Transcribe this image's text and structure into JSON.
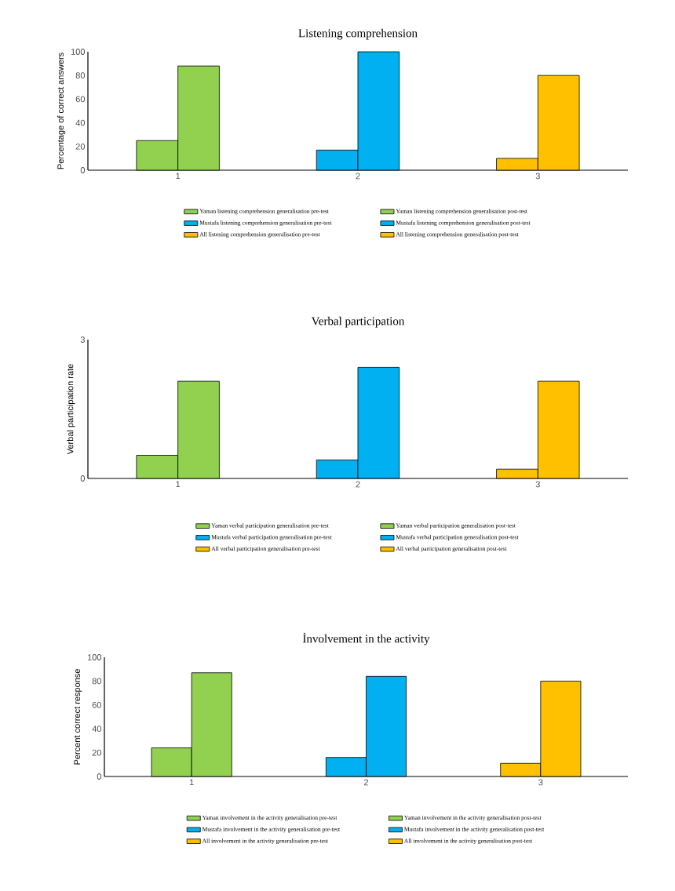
{
  "chart_data": [
    {
      "type": "bar",
      "title": "Listening comprehension",
      "ylabel": "Percentage of correct answers",
      "categories": [
        "1",
        "2",
        "3"
      ],
      "ylim": [
        0,
        100
      ],
      "yticks": [
        0,
        20,
        40,
        60,
        80,
        100
      ],
      "legend": "bottom",
      "grid": false,
      "series": [
        {
          "name": "Yaman listening comprehension generalisation pre-test",
          "color": "#92d050",
          "values": [
            25,
            null,
            null
          ]
        },
        {
          "name": "Yaman listening comprehension generalisation post-test",
          "color": "#92d050",
          "values": [
            88,
            null,
            null
          ]
        },
        {
          "name": "Mustafa listening comprehension generalisation pre-test",
          "color": "#00b0f0",
          "values": [
            null,
            17,
            null
          ]
        },
        {
          "name": "Mustafa listening comprehension generalisation post-test",
          "color": "#00b0f0",
          "values": [
            null,
            100,
            null
          ]
        },
        {
          "name": "All listening comprehension generalisation pre-test",
          "color": "#ffc000",
          "values": [
            null,
            null,
            10
          ]
        },
        {
          "name": "All listening comprehension generalisation post-test",
          "color": "#ffc000",
          "values": [
            null,
            null,
            80
          ]
        }
      ]
    },
    {
      "type": "bar",
      "title": "Verbal participation",
      "ylabel": "Verbal participation rate",
      "categories": [
        "1",
        "2",
        "3"
      ],
      "ylim": [
        0,
        3
      ],
      "yticks": [
        0,
        3
      ],
      "legend": "bottom",
      "grid": false,
      "series": [
        {
          "name": "Yaman verbal participation generalisation pre-test",
          "color": "#92d050",
          "values": [
            0.5,
            null,
            null
          ]
        },
        {
          "name": "Yaman verbal participation generalisation post-test",
          "color": "#92d050",
          "values": [
            2.1,
            null,
            null
          ]
        },
        {
          "name": "Mustafa verbal participation generalisation pre-test",
          "color": "#00b0f0",
          "values": [
            null,
            0.4,
            null
          ]
        },
        {
          "name": "Mustafa verbal participation generalisation post-test",
          "color": "#00b0f0",
          "values": [
            null,
            2.4,
            null
          ]
        },
        {
          "name": "All verbal participation generalisation pre-test",
          "color": "#ffc000",
          "values": [
            null,
            null,
            0.2
          ]
        },
        {
          "name": "All verbal participation generalisation post-test",
          "color": "#ffc000",
          "values": [
            null,
            null,
            2.1
          ]
        }
      ]
    },
    {
      "type": "bar",
      "title": "İnvolvement in the activity",
      "ylabel": "Percent correct response",
      "categories": [
        "1",
        "2",
        "3"
      ],
      "ylim": [
        0,
        100
      ],
      "yticks": [
        0,
        20,
        40,
        60,
        80,
        100
      ],
      "legend": "bottom",
      "grid": false,
      "series": [
        {
          "name": "Yaman involvement in the activity generalisation pre-test",
          "color": "#92d050",
          "values": [
            24,
            null,
            null
          ]
        },
        {
          "name": "Yaman involvement in the activity generalisation post-test",
          "color": "#92d050",
          "values": [
            87,
            null,
            null
          ]
        },
        {
          "name": "Mustafa involvement in the activity generalisation pre-test",
          "color": "#00b0f0",
          "values": [
            null,
            16,
            null
          ]
        },
        {
          "name": "Mustafa involvement in the activity generalisation post-test",
          "color": "#00b0f0",
          "values": [
            null,
            84,
            null
          ]
        },
        {
          "name": "All involvement in the activity generalisation pre-test",
          "color": "#ffc000",
          "values": [
            null,
            null,
            11
          ]
        },
        {
          "name": "All involvement in the activity generalisation post-test",
          "color": "#ffc000",
          "values": [
            null,
            null,
            80
          ]
        }
      ]
    }
  ]
}
